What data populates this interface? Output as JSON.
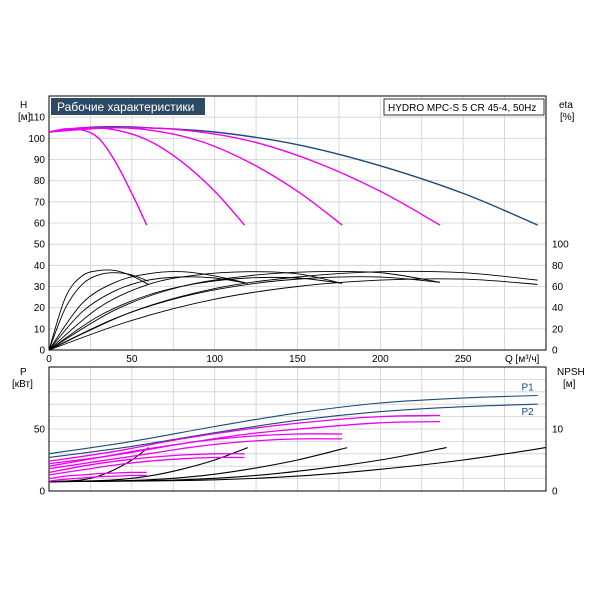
{
  "chart_data": {
    "type": "line",
    "title": "Рабочие характеристики",
    "product_label": "HYDRO MPC-S 5 CR 45-4, 50Hz",
    "colors": {
      "full": "#1a4a7a",
      "reduced": "#ee00ee",
      "eff": "#000000",
      "p1": "#1a4a7a",
      "p2": "#1a4a7a",
      "npsh": "#000000",
      "title_bg": "#2c4a66"
    },
    "top": {
      "x_label": "Q [м³/ч]",
      "y_left_label": [
        "H",
        "[м]"
      ],
      "y_right_label": [
        "eta",
        "[%]"
      ],
      "xlim": [
        0,
        300
      ],
      "ylim": [
        0,
        120
      ],
      "x_ticks": [
        0,
        50,
        100,
        150,
        200,
        250
      ],
      "y_ticks": [
        0,
        10,
        20,
        30,
        40,
        50,
        60,
        70,
        80,
        90,
        100,
        110
      ],
      "right_ticks": [
        0,
        20,
        40,
        60,
        80,
        100
      ],
      "head_series": [
        {
          "name": "",
          "kind": "full",
          "x": [
            0,
            20,
            40,
            60,
            100,
            150,
            200,
            250,
            295
          ],
          "y": [
            103,
            105,
            105.5,
            105,
            103,
            97,
            87,
            74,
            59
          ]
        },
        {
          "name": "",
          "kind": "reduced",
          "x": [
            0,
            10,
            20,
            30,
            40,
            50,
            59
          ],
          "y": [
            103,
            104.5,
            104,
            100,
            89,
            74,
            59
          ]
        },
        {
          "name": "",
          "kind": "reduced",
          "x": [
            0,
            20,
            40,
            60,
            80,
            100,
            118
          ],
          "y": [
            103,
            105,
            104,
            99,
            89,
            75,
            59
          ]
        },
        {
          "name": "",
          "kind": "reduced",
          "x": [
            0,
            30,
            60,
            90,
            120,
            150,
            177
          ],
          "y": [
            103,
            105,
            104,
            99,
            89,
            75,
            59
          ]
        },
        {
          "name": "",
          "kind": "reduced",
          "x": [
            0,
            40,
            80,
            120,
            160,
            200,
            236
          ],
          "y": [
            103,
            105,
            104,
            99,
            89,
            75,
            59
          ]
        }
      ],
      "eff_series": [
        {
          "name": "",
          "x": [
            0,
            10,
            20,
            30,
            40,
            50,
            60
          ],
          "y": [
            0,
            50,
            70,
            75,
            75,
            70,
            62
          ]
        },
        {
          "name": "",
          "x": [
            0,
            10,
            20,
            30,
            40,
            50,
            60
          ],
          "y": [
            0,
            40,
            62,
            71,
            73,
            71,
            65
          ]
        },
        {
          "name": "",
          "x": [
            0,
            20,
            40,
            60,
            80,
            100,
            120
          ],
          "y": [
            0,
            44,
            64,
            72,
            74,
            70,
            63
          ]
        },
        {
          "name": "",
          "x": [
            0,
            20,
            40,
            60,
            80,
            100,
            120
          ],
          "y": [
            0,
            36,
            56,
            66,
            69,
            68,
            63
          ]
        },
        {
          "name": "",
          "x": [
            0,
            30,
            60,
            90,
            120,
            150,
            177
          ],
          "y": [
            0,
            40,
            62,
            71,
            74,
            72,
            63
          ]
        },
        {
          "name": "",
          "x": [
            0,
            30,
            60,
            90,
            120,
            150,
            177
          ],
          "y": [
            0,
            32,
            52,
            63,
            68,
            68,
            63
          ]
        },
        {
          "name": "",
          "x": [
            0,
            40,
            80,
            120,
            160,
            200,
            236
          ],
          "y": [
            0,
            38,
            60,
            70,
            74,
            73,
            64
          ]
        },
        {
          "name": "",
          "x": [
            0,
            40,
            80,
            120,
            160,
            200,
            236
          ],
          "y": [
            0,
            30,
            50,
            62,
            68,
            69,
            64
          ]
        },
        {
          "name": "",
          "x": [
            0,
            50,
            100,
            150,
            200,
            250,
            295
          ],
          "y": [
            0,
            36,
            58,
            69,
            74,
            73,
            66
          ]
        },
        {
          "name": "",
          "x": [
            0,
            50,
            100,
            150,
            200,
            250,
            295
          ],
          "y": [
            0,
            28,
            48,
            60,
            66,
            67,
            62
          ]
        }
      ]
    },
    "bottom": {
      "y_left_label": [
        "P",
        "[кВт]"
      ],
      "y_right_label": [
        "NPSH",
        "[м]"
      ],
      "xlim": [
        0,
        300
      ],
      "ylim": [
        0,
        100
      ],
      "y_ticks": [
        0,
        50
      ],
      "right_ticks": [
        0,
        10
      ],
      "right_ylim": [
        0,
        20
      ],
      "power_series": [
        {
          "name": "P1",
          "kind": "p1",
          "x": [
            0,
            50,
            100,
            150,
            200,
            250,
            295
          ],
          "y": [
            30,
            40,
            52,
            63,
            71,
            75,
            77
          ]
        },
        {
          "name": "P2",
          "kind": "p2",
          "x": [
            0,
            50,
            100,
            150,
            200,
            250,
            295
          ],
          "y": [
            27,
            36,
            47,
            57,
            64,
            68,
            70
          ]
        },
        {
          "name": "",
          "kind": "reduced",
          "x": [
            0,
            40,
            80,
            120,
            160,
            200,
            236
          ],
          "y": [
            24,
            32,
            42,
            50,
            56,
            60,
            61
          ]
        },
        {
          "name": "",
          "kind": "reduced",
          "x": [
            0,
            40,
            80,
            120,
            160,
            200,
            236
          ],
          "y": [
            22,
            29,
            38,
            46,
            51,
            55,
            56
          ]
        },
        {
          "name": "",
          "kind": "reduced",
          "x": [
            0,
            30,
            60,
            90,
            120,
            150,
            177
          ],
          "y": [
            20,
            27,
            34,
            40,
            44,
            46,
            46
          ]
        },
        {
          "name": "",
          "kind": "reduced",
          "x": [
            0,
            30,
            60,
            90,
            120,
            150,
            177
          ],
          "y": [
            18,
            24,
            30,
            36,
            40,
            42,
            42
          ]
        },
        {
          "name": "",
          "kind": "reduced",
          "x": [
            0,
            20,
            40,
            60,
            80,
            100,
            118
          ],
          "y": [
            15,
            20,
            24,
            27,
            29,
            30,
            30
          ]
        },
        {
          "name": "",
          "kind": "reduced",
          "x": [
            0,
            20,
            40,
            60,
            80,
            100,
            118
          ],
          "y": [
            13,
            17,
            21,
            24,
            26,
            27,
            27
          ]
        },
        {
          "name": "",
          "kind": "reduced",
          "x": [
            0,
            10,
            20,
            30,
            40,
            50,
            59
          ],
          "y": [
            10,
            12,
            13,
            14,
            14.5,
            15,
            15
          ]
        },
        {
          "name": "",
          "kind": "reduced",
          "x": [
            0,
            10,
            20,
            30,
            40,
            50,
            59
          ],
          "y": [
            8,
            9.5,
            10.5,
            11.5,
            12,
            12.5,
            12.5
          ]
        }
      ],
      "npsh_series": [
        {
          "name": "",
          "x": [
            0,
            10,
            20,
            30,
            40,
            50,
            60
          ],
          "y": [
            1.5,
            1.6,
            1.8,
            2.4,
            3.5,
            5.0,
            7.0
          ]
        },
        {
          "name": "",
          "x": [
            0,
            20,
            40,
            60,
            80,
            100,
            120
          ],
          "y": [
            1.5,
            1.6,
            1.8,
            2.4,
            3.5,
            5.0,
            7.0
          ]
        },
        {
          "name": "",
          "x": [
            0,
            30,
            60,
            90,
            120,
            150,
            180
          ],
          "y": [
            1.5,
            1.6,
            1.8,
            2.4,
            3.5,
            5.0,
            7.0
          ]
        },
        {
          "name": "",
          "x": [
            0,
            40,
            80,
            120,
            160,
            200,
            240
          ],
          "y": [
            1.5,
            1.6,
            1.8,
            2.4,
            3.5,
            5.0,
            7.0
          ]
        },
        {
          "name": "",
          "x": [
            0,
            50,
            100,
            150,
            200,
            250,
            300
          ],
          "y": [
            1.5,
            1.6,
            1.8,
            2.4,
            3.5,
            5.0,
            7.0
          ]
        }
      ]
    }
  }
}
